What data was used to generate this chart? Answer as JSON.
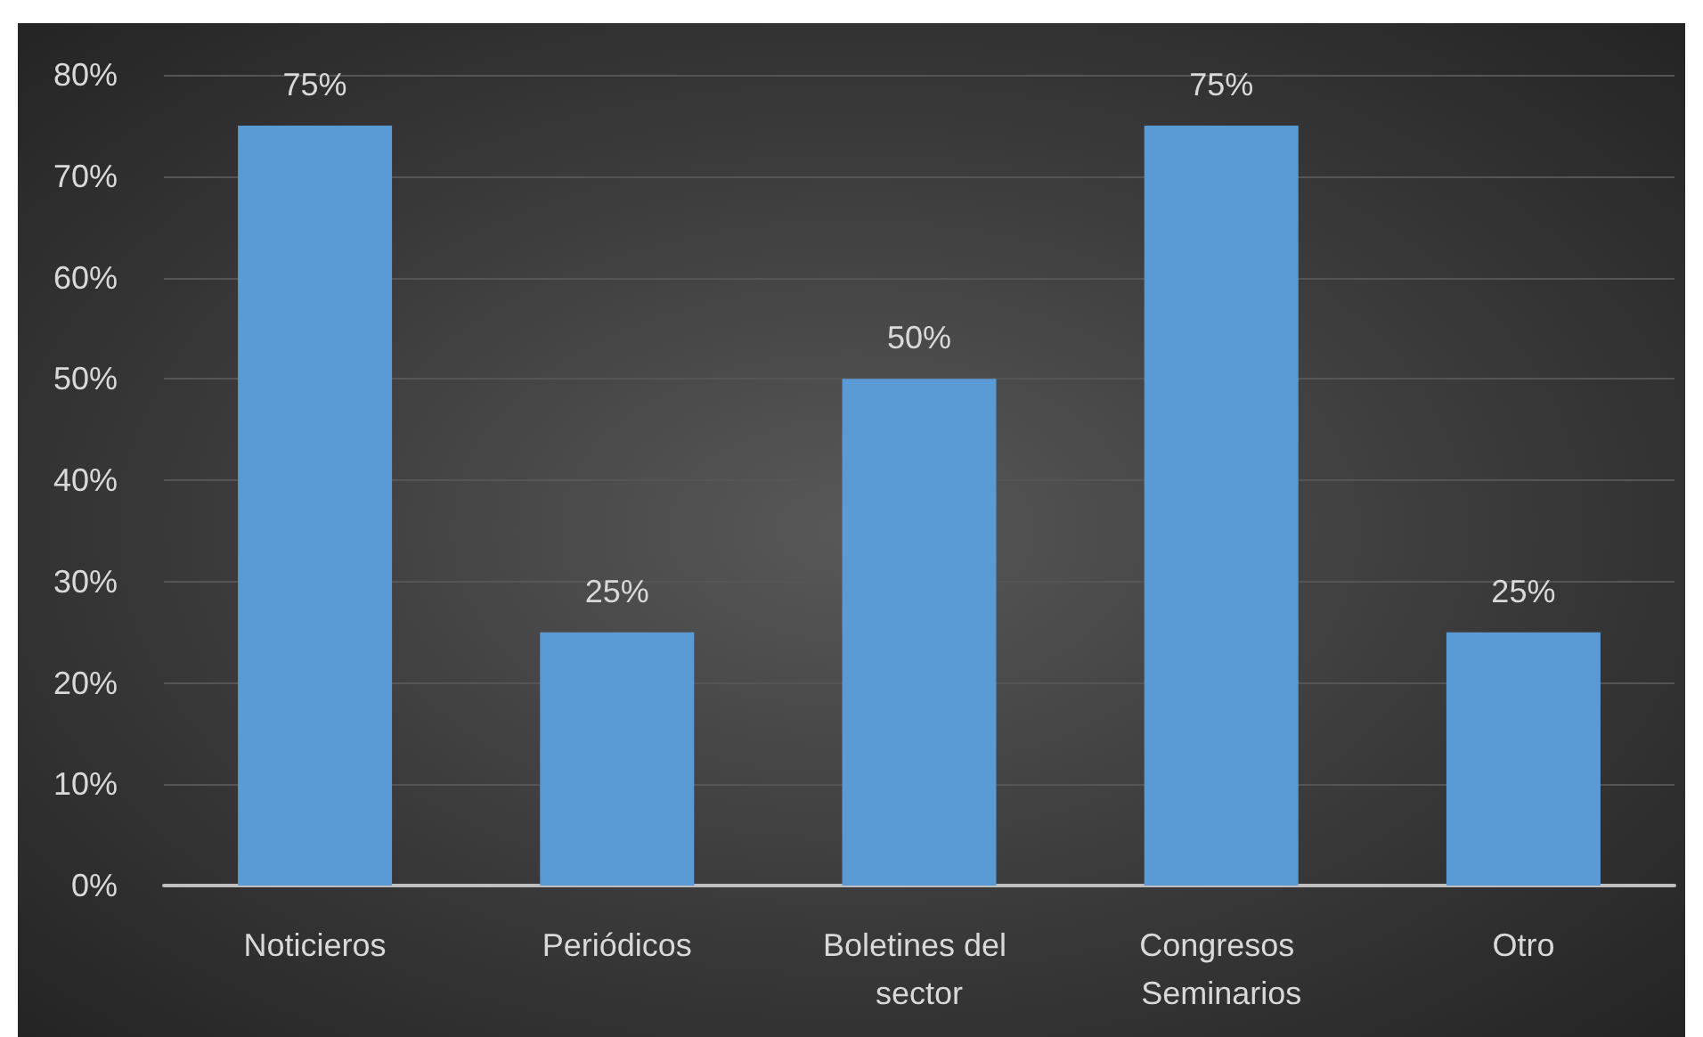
{
  "chart_data": {
    "type": "bar",
    "categories": [
      "Noticieros",
      "Periódicos",
      "Boletines del sector",
      "Congresos Seminarios",
      "Otro"
    ],
    "values": [
      75,
      25,
      50,
      75,
      25
    ],
    "color": "#5b9bd5",
    "value_labels": [
      "75%",
      "25%",
      "50%",
      "75%",
      "25%"
    ],
    "ylim": [
      0,
      80
    ],
    "yticks": [
      {
        "value": 0,
        "label": "0%"
      },
      {
        "value": 10,
        "label": "10%"
      },
      {
        "value": 20,
        "label": "20%"
      },
      {
        "value": 30,
        "label": "30%"
      },
      {
        "value": 40,
        "label": "40%"
      },
      {
        "value": 50,
        "label": "50%"
      },
      {
        "value": 60,
        "label": "60%"
      },
      {
        "value": 70,
        "label": "70%"
      },
      {
        "value": 80,
        "label": "80%"
      }
    ],
    "grid": "y"
  }
}
